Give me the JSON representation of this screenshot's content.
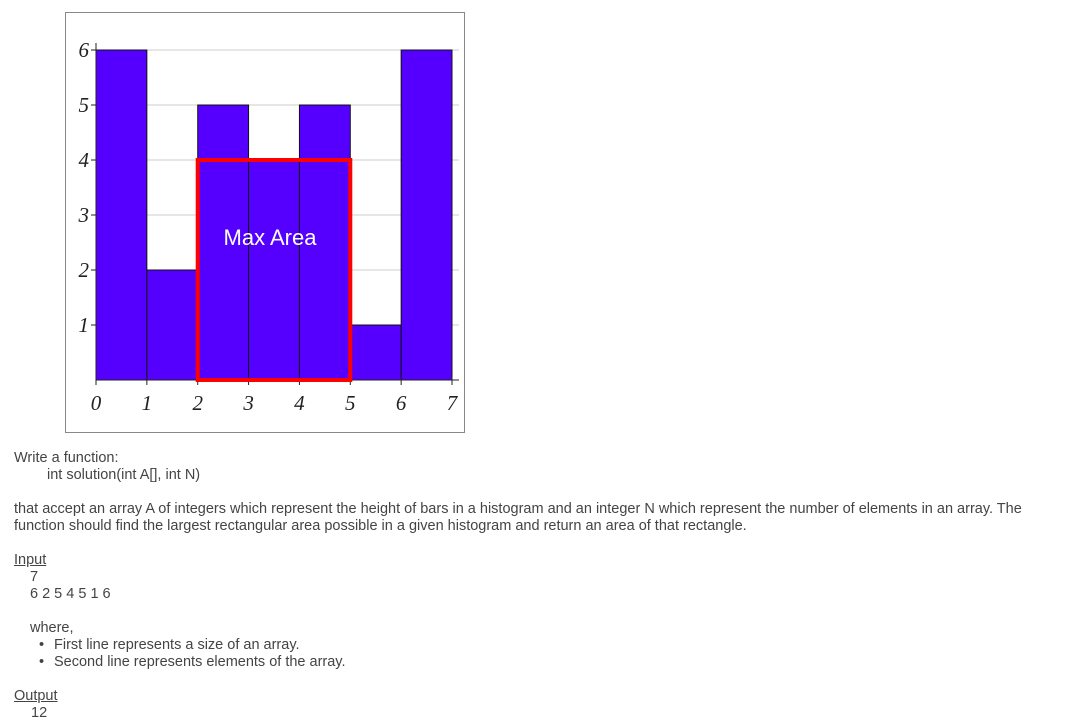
{
  "chart_data": {
    "type": "histogram",
    "bins": [
      0,
      1,
      2,
      3,
      4,
      5,
      6,
      7
    ],
    "values": [
      6,
      2,
      5,
      4,
      5,
      1,
      6
    ],
    "color": "#5500ff",
    "xlim": [
      0,
      7
    ],
    "ylim": [
      0,
      6
    ],
    "xticks": [
      0,
      1,
      2,
      3,
      4,
      5,
      6,
      7
    ],
    "yticks": [
      1,
      2,
      3,
      4,
      5,
      6
    ],
    "grid": true,
    "annotation": "Max Area",
    "highlight": {
      "x": [
        2,
        5
      ],
      "height": 4,
      "color": "#ff0000"
    }
  },
  "document": {
    "intro": "Write a function:",
    "signature": "int solution(int A[], int N)",
    "description": "that accept an array A of integers which represent the height of bars in a histogram and an integer N which represent the number of elements in an array. The function should find the largest rectangular area possible in a given histogram and return an area of that rectangle.",
    "input": {
      "heading": "Input",
      "lines": [
        "7",
        "6 2 5 4 5 1 6"
      ],
      "where": "where,",
      "notes": [
        "First line represents a size of an array.",
        "Second line represents elements of the array."
      ]
    },
    "output": {
      "heading": "Output",
      "lines": [
        "12"
      ]
    }
  }
}
